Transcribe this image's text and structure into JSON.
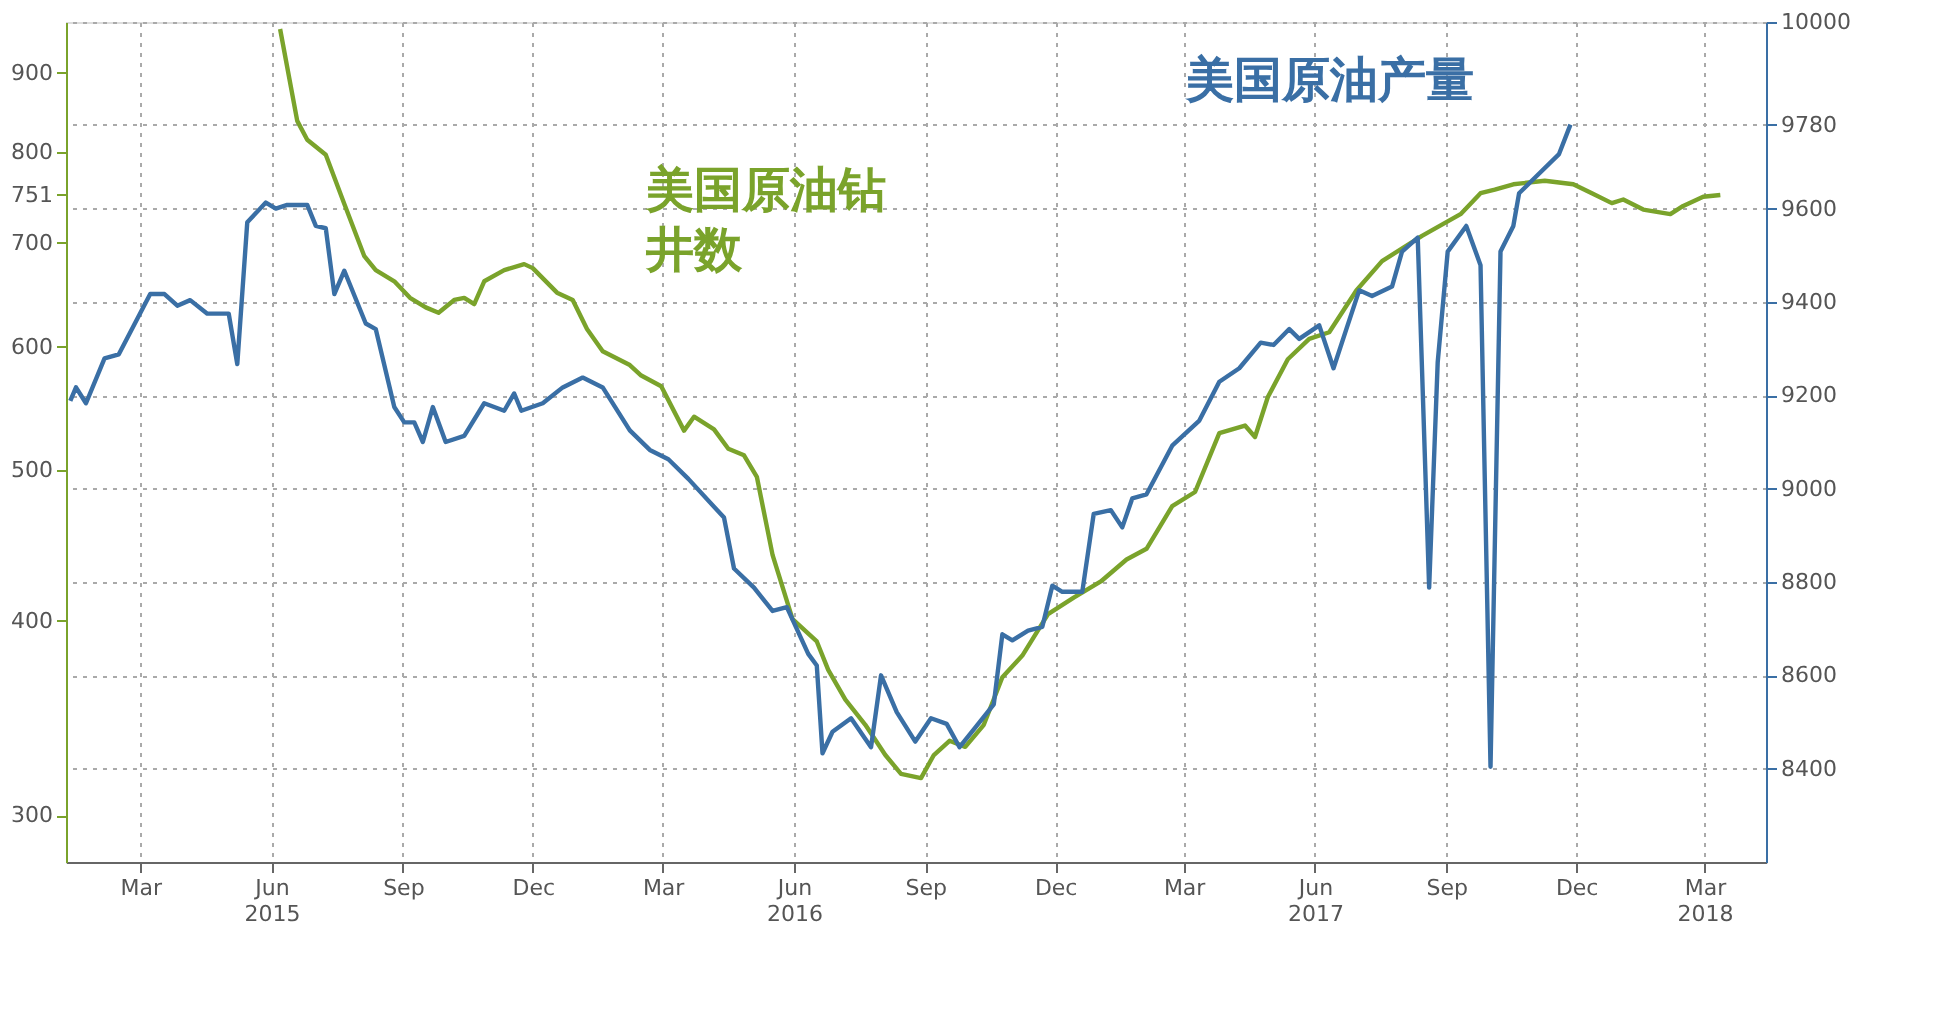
{
  "chart_data": {
    "type": "line",
    "xlim": [
      "2015-01-22",
      "2018-04-27"
    ],
    "xticks": [
      {
        "value": "2015-03-15",
        "label": "Mar"
      },
      {
        "value": "2015-06-15",
        "label": "Jun\n2015"
      },
      {
        "value": "2015-09-15",
        "label": "Sep"
      },
      {
        "value": "2015-12-15",
        "label": "Dec"
      },
      {
        "value": "2016-03-15",
        "label": "Mar"
      },
      {
        "value": "2016-06-15",
        "label": "Jun\n2016"
      },
      {
        "value": "2016-09-15",
        "label": "Sep"
      },
      {
        "value": "2016-12-15",
        "label": "Dec"
      },
      {
        "value": "2017-03-15",
        "label": "Mar"
      },
      {
        "value": "2017-06-15",
        "label": "Jun\n2017"
      },
      {
        "value": "2017-09-15",
        "label": "Sep"
      },
      {
        "value": "2017-12-15",
        "label": "Dec"
      },
      {
        "value": "2018-03-15",
        "label": "Mar\n2018"
      }
    ],
    "ylim": [
      280,
      970
    ],
    "yticks": [
      300,
      400,
      500,
      600,
      700,
      751,
      800,
      900
    ],
    "log": true,
    "y2lim": [
      8200,
      10000
    ],
    "y2ticks": [
      8400,
      8600,
      8800,
      9000,
      9200,
      9400,
      9600,
      9780,
      10000
    ],
    "grid": true,
    "series": [
      {
        "name": "美国原油钻井数",
        "color": "#7aa32b",
        "axis": "y",
        "x": [
          "2015-06-21",
          "2015-07-03",
          "2015-07-10",
          "2015-07-23",
          "2015-08-05",
          "2015-08-19",
          "2015-08-27",
          "2015-09-09",
          "2015-09-20",
          "2015-10-01",
          "2015-10-10",
          "2015-10-21",
          "2015-10-28",
          "2015-11-04",
          "2015-11-11",
          "2015-11-25",
          "2015-12-09",
          "2015-12-15",
          "2016-01-01",
          "2016-01-12",
          "2016-01-22",
          "2016-02-02",
          "2016-02-21",
          "2016-02-29",
          "2016-03-14",
          "2016-03-30",
          "2016-04-06",
          "2016-04-20",
          "2016-04-30",
          "2016-05-11",
          "2016-05-20",
          "2016-05-31",
          "2016-06-14",
          "2016-07-01",
          "2016-07-09",
          "2016-07-21",
          "2016-08-04",
          "2016-08-18",
          "2016-08-29",
          "2016-09-12",
          "2016-09-21",
          "2016-10-02",
          "2016-10-13",
          "2016-10-26",
          "2016-11-08",
          "2016-11-22",
          "2016-12-10",
          "2016-12-28",
          "2017-01-16",
          "2017-02-03",
          "2017-02-17",
          "2017-03-07",
          "2017-03-23",
          "2017-04-09",
          "2017-04-27",
          "2017-05-04",
          "2017-05-13",
          "2017-05-27",
          "2017-06-11",
          "2017-06-25",
          "2017-07-14",
          "2017-08-01",
          "2017-08-29",
          "2017-09-25",
          "2017-10-09",
          "2017-10-19",
          "2017-11-01",
          "2017-11-23",
          "2017-12-13",
          "2017-12-26",
          "2018-01-09",
          "2018-01-17",
          "2018-01-31",
          "2018-02-19",
          "2018-02-28",
          "2018-03-14",
          "2018-03-26"
        ],
        "values": [
          960,
          838,
          815,
          797,
          741,
          686,
          672,
          661,
          645,
          636,
          631,
          643,
          645,
          639,
          661,
          672,
          678,
          674,
          650,
          643,
          616,
          596,
          584,
          575,
          566,
          530,
          541,
          531,
          516,
          511,
          495,
          441,
          401,
          388,
          372,
          356,
          343,
          328,
          319,
          317,
          328,
          335,
          332,
          343,
          368,
          380,
          404,
          414,
          424,
          438,
          445,
          474,
          484,
          528,
          534,
          525,
          557,
          589,
          607,
          613,
          652,
          681,
          707,
          730,
          753,
          757,
          763,
          767,
          763,
          753,
          742,
          746,
          735,
          730,
          739,
          749,
          751
        ]
      },
      {
        "name": "美国原油产量",
        "color": "#3a6fa5",
        "axis": "y2",
        "x": [
          "2015-01-25",
          "2015-01-29",
          "2015-02-05",
          "2015-02-18",
          "2015-02-28",
          "2015-03-22",
          "2015-04-01",
          "2015-04-10",
          "2015-04-19",
          "2015-05-01",
          "2015-05-16",
          "2015-05-22",
          "2015-05-29",
          "2015-06-11",
          "2015-06-18",
          "2015-06-26",
          "2015-07-10",
          "2015-07-16",
          "2015-07-23",
          "2015-07-29",
          "2015-08-05",
          "2015-08-20",
          "2015-08-27",
          "2015-09-09",
          "2015-09-16",
          "2015-09-23",
          "2015-09-29",
          "2015-10-06",
          "2015-10-15",
          "2015-10-28",
          "2015-11-11",
          "2015-11-25",
          "2015-12-02",
          "2015-12-07",
          "2015-12-22",
          "2016-01-05",
          "2016-01-19",
          "2016-02-02",
          "2016-02-21",
          "2016-03-06",
          "2016-03-19",
          "2016-04-02",
          "2016-04-27",
          "2016-05-04",
          "2016-05-18",
          "2016-05-31",
          "2016-06-10",
          "2016-06-25",
          "2016-07-01",
          "2016-07-05",
          "2016-07-12",
          "2016-07-25",
          "2016-08-08",
          "2016-08-15",
          "2016-08-26",
          "2016-09-08",
          "2016-09-19",
          "2016-09-30",
          "2016-10-09",
          "2016-10-20",
          "2016-11-02",
          "2016-11-08",
          "2016-11-15",
          "2016-11-26",
          "2016-12-06",
          "2016-12-13",
          "2016-12-20",
          "2017-01-03",
          "2017-01-11",
          "2017-01-23",
          "2017-01-31",
          "2017-02-07",
          "2017-02-17",
          "2017-03-07",
          "2017-03-26",
          "2017-04-09",
          "2017-04-23",
          "2017-05-08",
          "2017-05-17",
          "2017-05-28",
          "2017-06-04",
          "2017-06-18",
          "2017-06-28",
          "2017-07-07",
          "2017-07-16",
          "2017-07-25",
          "2017-08-08",
          "2017-08-15",
          "2017-08-26",
          "2017-09-03",
          "2017-09-09",
          "2017-09-16",
          "2017-09-29",
          "2017-10-09",
          "2017-10-16",
          "2017-10-23",
          "2017-11-01",
          "2017-11-05",
          "2017-11-15",
          "2017-12-03",
          "2017-12-11"
        ],
        "values": [
          9188,
          9217,
          9183,
          9279,
          9288,
          9417,
          9417,
          9392,
          9404,
          9375,
          9375,
          9267,
          9571,
          9613,
          9600,
          9608,
          9608,
          9563,
          9558,
          9417,
          9467,
          9354,
          9342,
          9175,
          9142,
          9142,
          9100,
          9175,
          9100,
          9113,
          9183,
          9167,
          9204,
          9167,
          9183,
          9217,
          9238,
          9217,
          9125,
          9083,
          9063,
          9021,
          8938,
          8829,
          8788,
          8738,
          8746,
          8646,
          8621,
          8433,
          8479,
          8508,
          8446,
          8600,
          8521,
          8458,
          8508,
          8496,
          8446,
          8488,
          8538,
          8688,
          8675,
          8696,
          8704,
          8792,
          8779,
          8779,
          8946,
          8954,
          8917,
          8979,
          8988,
          9092,
          9146,
          9229,
          9258,
          9313,
          9308,
          9342,
          9321,
          9350,
          9258,
          9342,
          9425,
          9413,
          9433,
          9508,
          9538,
          8788,
          9271,
          9508,
          9563,
          9479,
          8404,
          9508,
          9563,
          9633,
          9663,
          9717,
          9780
        ]
      }
    ]
  }
}
